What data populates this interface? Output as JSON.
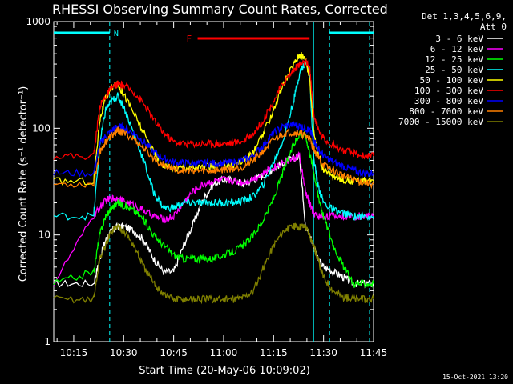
{
  "chart_data": {
    "type": "line",
    "title": "RHESSI Observing Summary Count Rates, Corrected",
    "xlabel": "Start Time (20-May-06 10:09:02)",
    "ylabel": "Corrected Count Rate (s⁻¹ detector⁻¹)",
    "yscale": "log",
    "ylim": [
      1,
      1000
    ],
    "xlim": [
      10.15,
      11.75
    ],
    "x_ticks": [
      "10:15",
      "10:30",
      "10:45",
      "11:00",
      "11:15",
      "11:30",
      "11:45"
    ],
    "x_tick_values": [
      10.25,
      10.5,
      10.75,
      11.0,
      11.25,
      11.5,
      11.75
    ],
    "y_ticks": [
      "1",
      "10",
      "100",
      "1000"
    ],
    "y_tick_values": [
      1,
      10,
      100,
      1000
    ],
    "grid": false,
    "legend_header": [
      "Det 1,3,4,5,6,9,",
      "Att 0"
    ],
    "legend_position": "right",
    "footer_date": "15-Oct-2021 13:20",
    "annotations": {
      "night_label": "N",
      "flare_label": "F",
      "night_color": "#00ffff",
      "flare_color": "#ff0000",
      "night_intervals": [
        [
          10.15,
          10.43
        ],
        [
          11.53,
          11.75
        ]
      ],
      "flare_interval": [
        10.87,
        11.43
      ],
      "dashed_lines": [
        10.43,
        11.53,
        11.73
      ],
      "solid_lines": [
        11.45
      ]
    },
    "x_hours": [
      10.15,
      10.35,
      10.38,
      10.41,
      10.44,
      10.47,
      10.5,
      10.55,
      10.6,
      10.65,
      10.7,
      10.75,
      10.8,
      10.85,
      10.9,
      10.95,
      11.0,
      11.05,
      11.1,
      11.15,
      11.2,
      11.25,
      11.3,
      11.35,
      11.38,
      11.41,
      11.43,
      11.45,
      11.47,
      11.5,
      11.55,
      11.6,
      11.65,
      11.7,
      11.75
    ],
    "series": [
      {
        "name": "3 - 6 keV",
        "color": "#ffffff",
        "values": [
          3.5,
          3.5,
          6,
          9,
          11,
          12,
          12,
          11,
          9,
          6,
          4.5,
          4.5,
          8,
          13,
          22,
          30,
          33,
          33,
          30,
          33,
          36,
          42,
          48,
          52,
          55,
          12,
          10,
          8,
          6,
          5,
          4.5,
          4,
          3.5,
          3.5,
          3.5
        ]
      },
      {
        "name": "6 - 12 keV",
        "color": "#ff00ff",
        "values": [
          3.5,
          15,
          18,
          21,
          22,
          22,
          21,
          19,
          17,
          15,
          14,
          15,
          20,
          26,
          30,
          32,
          33,
          32,
          31,
          34,
          38,
          43,
          48,
          52,
          55,
          25,
          20,
          16,
          15,
          15,
          15,
          15,
          15,
          15,
          15
        ]
      },
      {
        "name": "12 - 25 keV",
        "color": "#00ff00",
        "values": [
          3.5,
          4.5,
          10,
          15,
          18,
          20,
          19,
          17,
          14,
          10,
          8,
          6.5,
          6,
          6,
          6,
          6,
          6.5,
          7,
          8,
          10,
          14,
          22,
          40,
          70,
          90,
          85,
          60,
          40,
          25,
          15,
          8,
          5,
          3.5,
          3.5,
          3.5
        ]
      },
      {
        "name": "25 - 50 keV",
        "color": "#00ffff",
        "values": [
          15,
          15,
          70,
          150,
          180,
          200,
          160,
          90,
          50,
          25,
          18,
          18,
          20,
          20,
          20,
          20,
          20,
          20,
          21,
          23,
          30,
          48,
          80,
          180,
          330,
          420,
          350,
          55,
          30,
          20,
          17,
          16,
          15,
          15,
          15
        ]
      },
      {
        "name": "50 - 100 keV",
        "color": "#ffff00",
        "values": [
          32,
          32,
          120,
          190,
          240,
          260,
          210,
          140,
          90,
          60,
          45,
          42,
          43,
          43,
          43,
          44,
          45,
          46,
          50,
          60,
          90,
          150,
          260,
          400,
          490,
          450,
          300,
          100,
          60,
          40,
          35,
          33,
          32,
          32,
          32
        ]
      },
      {
        "name": "100 - 300 keV",
        "color": "#ff0000",
        "values": [
          55,
          55,
          160,
          200,
          240,
          260,
          250,
          220,
          170,
          120,
          90,
          75,
          72,
          72,
          72,
          72,
          72,
          73,
          76,
          90,
          120,
          180,
          270,
          350,
          400,
          410,
          380,
          140,
          100,
          80,
          70,
          62,
          58,
          55,
          55
        ]
      },
      {
        "name": "300 - 800 keV",
        "color": "#0000ff",
        "values": [
          38,
          38,
          70,
          85,
          95,
          105,
          100,
          90,
          75,
          60,
          52,
          48,
          47,
          47,
          47,
          47,
          47,
          48,
          50,
          56,
          70,
          90,
          105,
          108,
          105,
          100,
          95,
          80,
          65,
          55,
          48,
          44,
          40,
          38,
          38
        ]
      },
      {
        "name": "800 - 7000 keV",
        "color": "#ff8000",
        "values": [
          30,
          30,
          60,
          75,
          85,
          95,
          90,
          80,
          65,
          52,
          45,
          42,
          40,
          40,
          40,
          40,
          41,
          42,
          44,
          50,
          62,
          78,
          90,
          92,
          90,
          85,
          80,
          65,
          55,
          45,
          40,
          36,
          33,
          31,
          30
        ]
      },
      {
        "name": "7000 - 15000 keV",
        "color": "#808000",
        "values": [
          2.5,
          2.5,
          6,
          8,
          11,
          12,
          11,
          8,
          5,
          3.5,
          2.8,
          2.5,
          2.5,
          2.5,
          2.5,
          2.5,
          2.5,
          2.5,
          2.6,
          3,
          5,
          8,
          11,
          12,
          12,
          12,
          10,
          8,
          6,
          4,
          3,
          2.6,
          2.5,
          2.5,
          2.5
        ]
      }
    ]
  }
}
